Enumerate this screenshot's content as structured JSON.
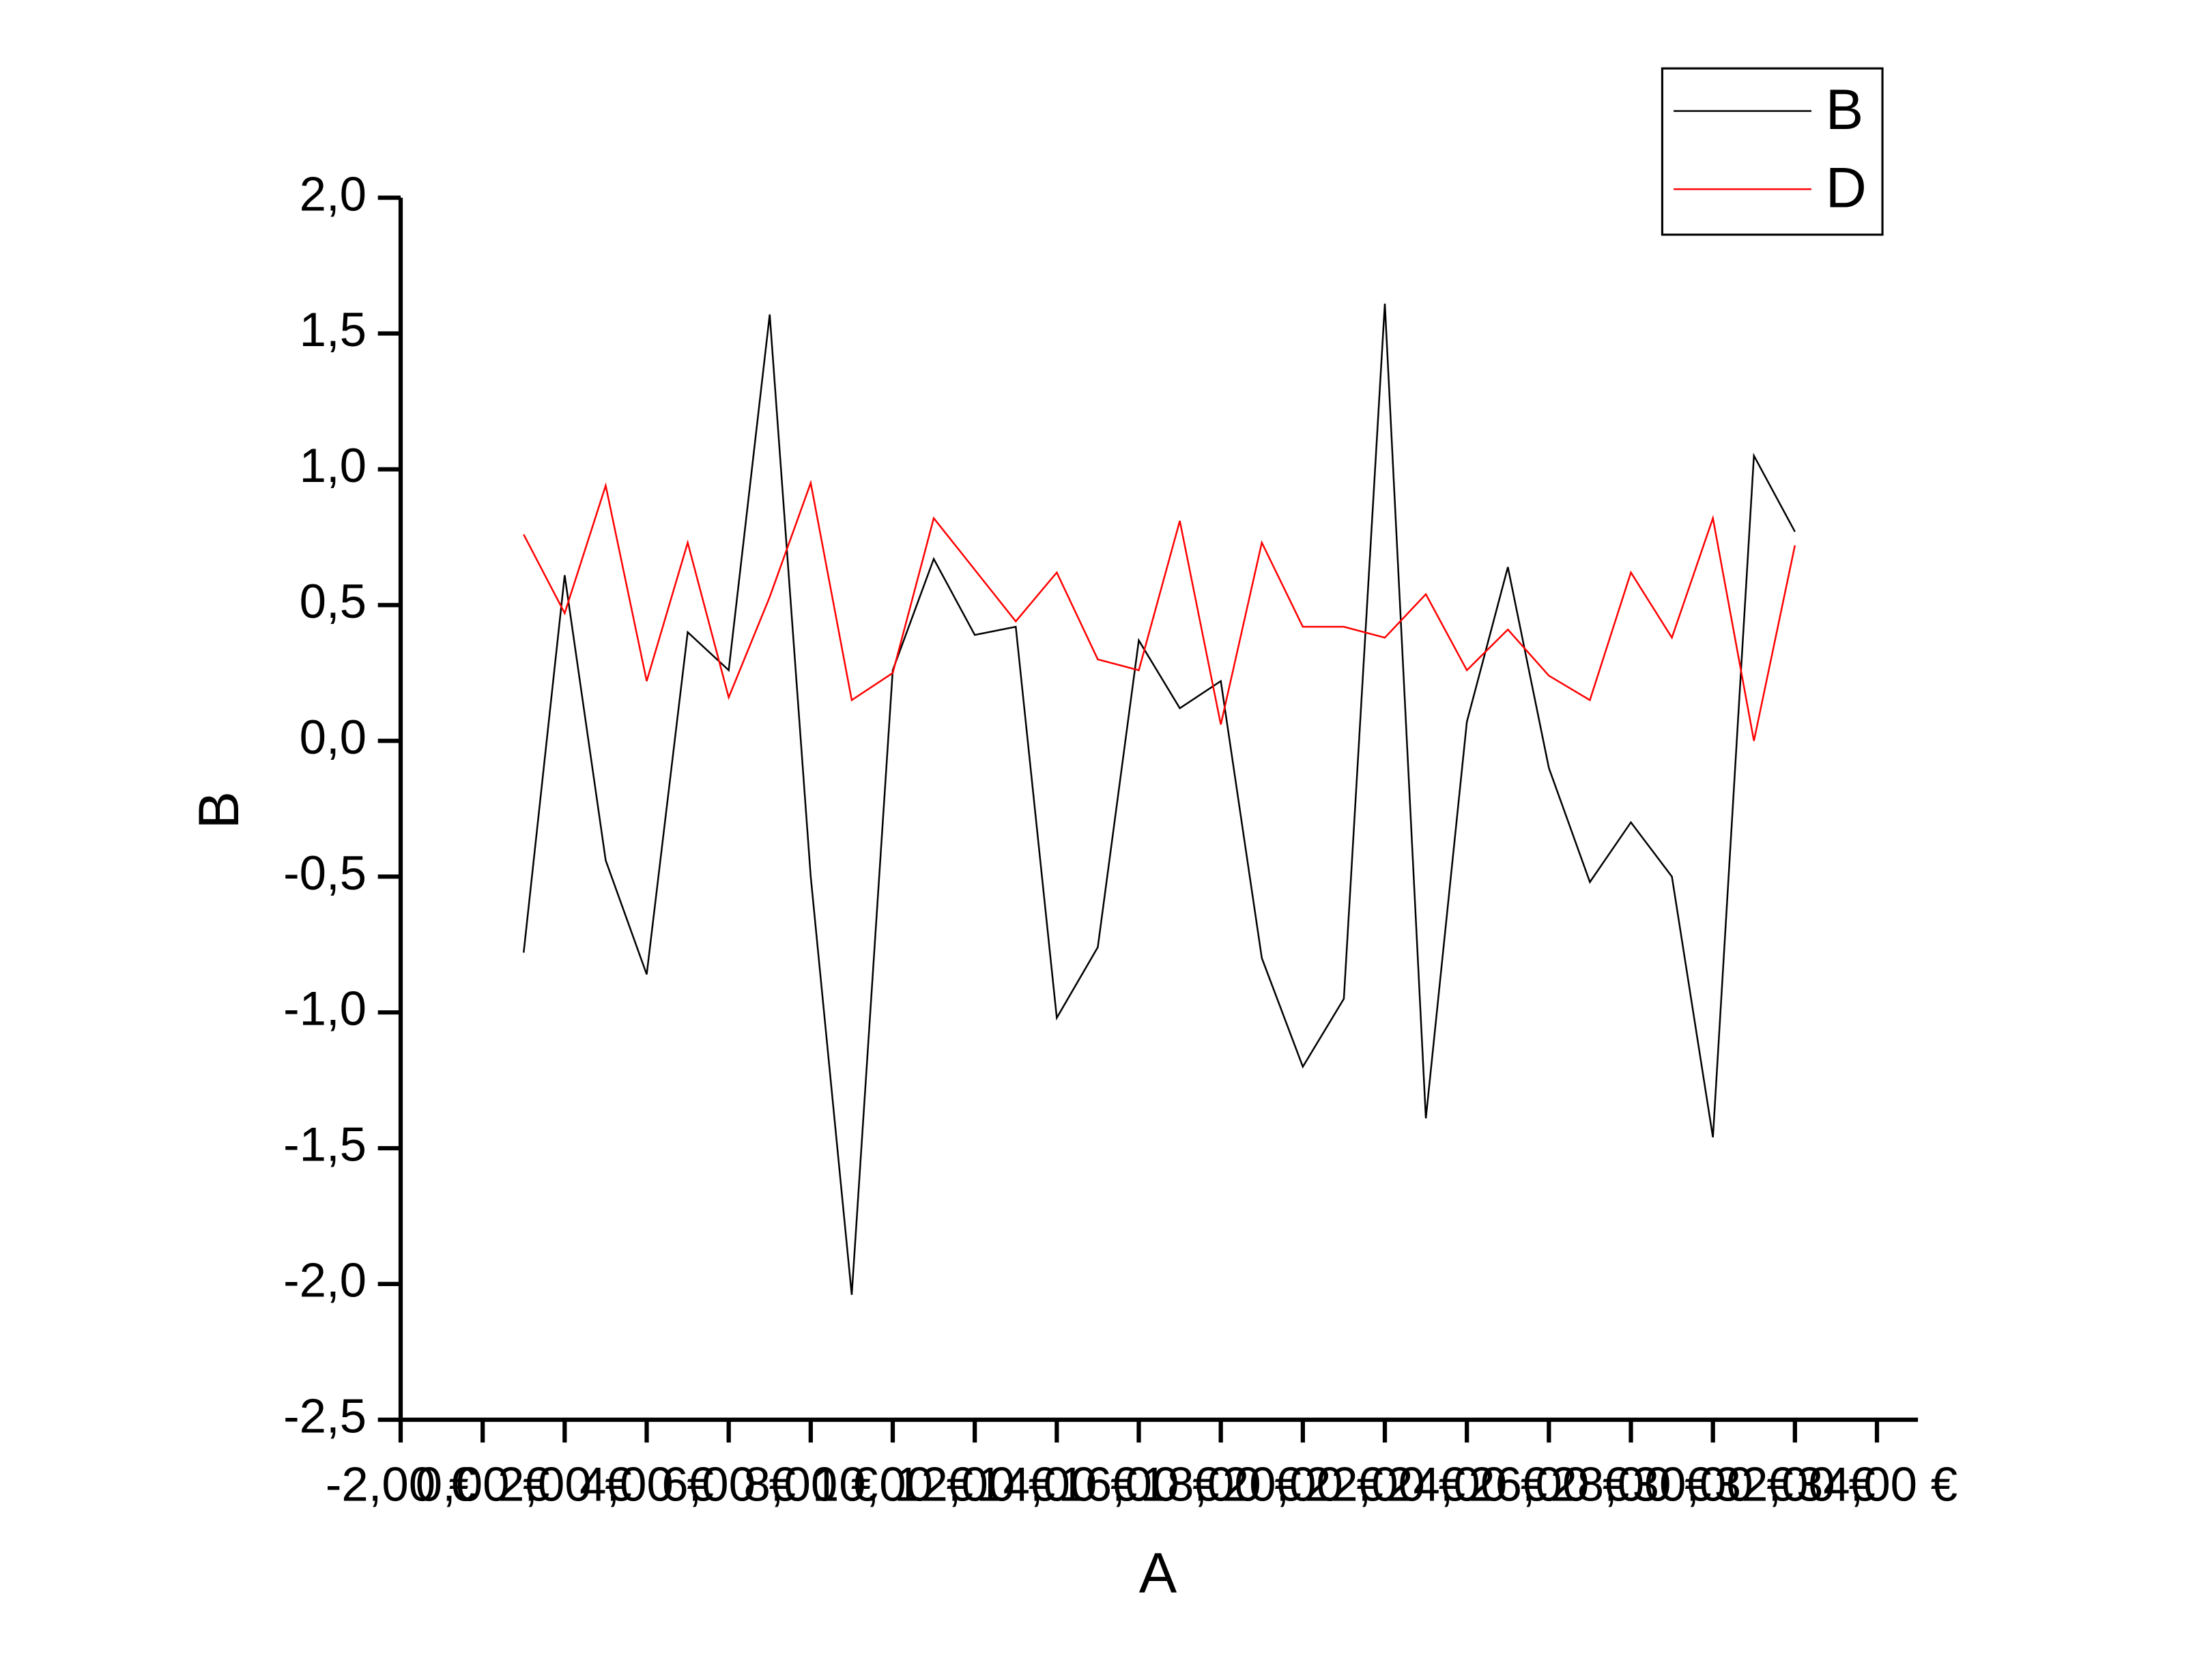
{
  "chart_data": {
    "type": "line",
    "x_label": "A",
    "y_label": "B",
    "x": [
      1,
      2,
      3,
      4,
      5,
      6,
      7,
      8,
      9,
      10,
      11,
      12,
      13,
      14,
      15,
      16,
      17,
      18,
      19,
      20,
      21,
      22,
      23,
      24,
      25,
      26,
      27,
      28,
      29,
      30,
      31,
      32
    ],
    "series": [
      {
        "name": "B",
        "color": "#000000",
        "values": [
          -0.78,
          0.61,
          -0.44,
          -0.86,
          0.4,
          0.26,
          1.57,
          -0.5,
          -2.04,
          0.26,
          0.67,
          0.39,
          0.42,
          -1.02,
          -0.76,
          0.37,
          0.12,
          0.22,
          -0.8,
          -1.2,
          -0.95,
          1.61,
          -1.39,
          0.07,
          0.64,
          -0.1,
          -0.52,
          -0.3,
          -0.5,
          -1.46,
          1.05,
          0.77
        ]
      },
      {
        "name": "D",
        "color": "#ff0000",
        "values": [
          0.76,
          0.47,
          0.94,
          0.22,
          0.73,
          0.16,
          0.53,
          0.95,
          0.15,
          0.25,
          0.82,
          0.63,
          0.44,
          0.62,
          0.3,
          0.26,
          0.81,
          0.06,
          0.73,
          0.42,
          0.42,
          0.38,
          0.54,
          0.26,
          0.41,
          0.24,
          0.15,
          0.62,
          0.38,
          0.82,
          0.0,
          0.72
        ]
      }
    ],
    "xlim": [
      -2,
      35
    ],
    "ylim": [
      -2.5,
      2.0
    ],
    "xticks": [
      {
        "value": -2,
        "label": "-2,00 €"
      },
      {
        "value": 0,
        "label": "0,00 €"
      },
      {
        "value": 2,
        "label": "2,00 €"
      },
      {
        "value": 4,
        "label": "4,00 €"
      },
      {
        "value": 6,
        "label": "6,00 €"
      },
      {
        "value": 8,
        "label": "8,00 €"
      },
      {
        "value": 10,
        "label": "10,00 €"
      },
      {
        "value": 12,
        "label": "12,00 €"
      },
      {
        "value": 14,
        "label": "14,00 €"
      },
      {
        "value": 16,
        "label": "16,00 €"
      },
      {
        "value": 18,
        "label": "18,00 €"
      },
      {
        "value": 20,
        "label": "20,00 €"
      },
      {
        "value": 22,
        "label": "22,00 €"
      },
      {
        "value": 24,
        "label": "24,00 €"
      },
      {
        "value": 26,
        "label": "26,00 €"
      },
      {
        "value": 28,
        "label": "28,00 €"
      },
      {
        "value": 30,
        "label": "30,00 €"
      },
      {
        "value": 32,
        "label": "32,00 €"
      },
      {
        "value": 34,
        "label": "34,00 €"
      }
    ],
    "yticks": [
      {
        "value": -2.5,
        "label": "-2,5"
      },
      {
        "value": -2.0,
        "label": "-2,0"
      },
      {
        "value": -1.5,
        "label": "-1,5"
      },
      {
        "value": -1.0,
        "label": "-1,0"
      },
      {
        "value": -0.5,
        "label": "-0,5"
      },
      {
        "value": 0,
        "label": "0,0"
      },
      {
        "value": 0.5,
        "label": "0,5"
      },
      {
        "value": 1.0,
        "label": "1,0"
      },
      {
        "value": 1.5,
        "label": "1,5"
      },
      {
        "value": 2.0,
        "label": "2,0"
      }
    ],
    "grid": false,
    "legend": "top-right"
  }
}
